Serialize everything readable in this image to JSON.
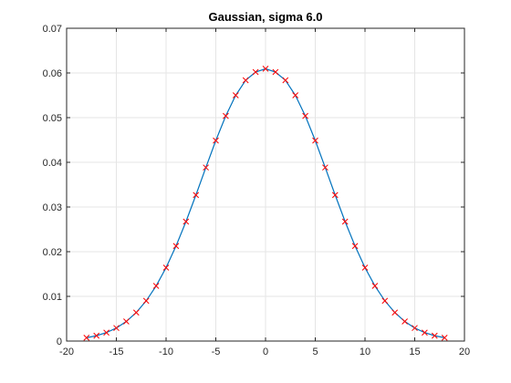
{
  "chart_data": {
    "type": "line",
    "title": "Gaussian, sigma 6.0",
    "xlabel": "",
    "ylabel": "",
    "xlim": [
      -20,
      20
    ],
    "ylim": [
      0,
      0.07
    ],
    "xticks": [
      -20,
      -15,
      -10,
      -5,
      0,
      5,
      10,
      15,
      20
    ],
    "xtick_labels": [
      "-20",
      "-15",
      "-10",
      "-5",
      "0",
      "5",
      "10",
      "15",
      "20"
    ],
    "yticks": [
      0,
      0.01,
      0.02,
      0.03,
      0.04,
      0.05,
      0.06,
      0.07
    ],
    "ytick_labels": [
      "0",
      "0.01",
      "0.02",
      "0.03",
      "0.04",
      "0.05",
      "0.06",
      "0.07"
    ],
    "grid": true,
    "legend": "none",
    "series": [
      {
        "style": "line",
        "color": "#0072bd",
        "x": [
          -18,
          -17,
          -16,
          -15,
          -14,
          -13,
          -12,
          -11,
          -10,
          -9,
          -8,
          -7,
          -6,
          -5,
          -4,
          -3,
          -2,
          -1,
          0,
          1,
          2,
          3,
          4,
          5,
          6,
          7,
          8,
          9,
          10,
          11,
          12,
          13,
          14,
          15,
          16,
          17,
          18
        ],
        "y": [
          0.00074,
          0.0012,
          0.00189,
          0.00292,
          0.00438,
          0.00638,
          0.009,
          0.01234,
          0.01643,
          0.02127,
          0.02673,
          0.03268,
          0.03884,
          0.04487,
          0.05038,
          0.055,
          0.05837,
          0.0602,
          0.06094,
          0.0602,
          0.05837,
          0.055,
          0.05038,
          0.04487,
          0.03884,
          0.03268,
          0.02673,
          0.02127,
          0.01643,
          0.01234,
          0.009,
          0.00638,
          0.00438,
          0.00292,
          0.00189,
          0.0012,
          0.00074
        ]
      },
      {
        "style": "markers-x",
        "color": "#ff0000",
        "x": [
          -18,
          -17,
          -16,
          -15,
          -14,
          -13,
          -12,
          -11,
          -10,
          -9,
          -8,
          -7,
          -6,
          -5,
          -4,
          -3,
          -2,
          -1,
          0,
          1,
          2,
          3,
          4,
          5,
          6,
          7,
          8,
          9,
          10,
          11,
          12,
          13,
          14,
          15,
          16,
          17,
          18
        ],
        "y": [
          0.00074,
          0.0012,
          0.00189,
          0.00292,
          0.00438,
          0.00638,
          0.009,
          0.01234,
          0.01643,
          0.02127,
          0.02673,
          0.03268,
          0.03884,
          0.04487,
          0.05038,
          0.055,
          0.05837,
          0.0602,
          0.06094,
          0.0602,
          0.05837,
          0.055,
          0.05038,
          0.04487,
          0.03884,
          0.03268,
          0.02673,
          0.02127,
          0.01643,
          0.01234,
          0.009,
          0.00638,
          0.00438,
          0.00292,
          0.00189,
          0.0012,
          0.00074
        ]
      }
    ]
  }
}
